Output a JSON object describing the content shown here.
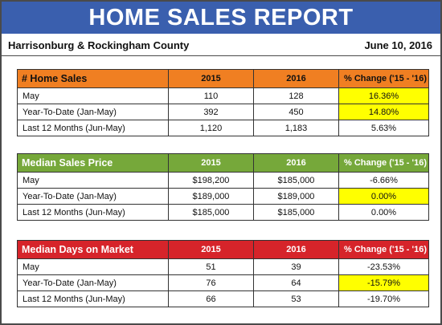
{
  "header": {
    "title": "HOME SALES REPORT",
    "location": "Harrisonburg & Rockingham County",
    "date": "June 10, 2016"
  },
  "sections": [
    {
      "title": "# Home Sales",
      "col_2015": "2015",
      "col_2016": "2016",
      "col_change": "% Change ('15 - '16)",
      "rows": [
        {
          "label": "May",
          "v2015": "110",
          "v2016": "128",
          "change": "16.36%",
          "highlight": true
        },
        {
          "label": "Year-To-Date (Jan-May)",
          "v2015": "392",
          "v2016": "450",
          "change": "14.80%",
          "highlight": true
        },
        {
          "label": "Last 12 Months (Jun-May)",
          "v2015": "1,120",
          "v2016": "1,183",
          "change": "5.63%",
          "highlight": false
        }
      ]
    },
    {
      "title": "Median Sales Price",
      "col_2015": "2015",
      "col_2016": "2016",
      "col_change": "% Change ('15 - '16)",
      "rows": [
        {
          "label": "May",
          "v2015": "$198,200",
          "v2016": "$185,000",
          "change": "-6.66%",
          "highlight": false
        },
        {
          "label": "Year-To-Date (Jan-May)",
          "v2015": "$189,000",
          "v2016": "$189,000",
          "change": "0.00%",
          "highlight": true
        },
        {
          "label": "Last 12 Months (Jun-May)",
          "v2015": "$185,000",
          "v2016": "$185,000",
          "change": "0.00%",
          "highlight": false
        }
      ]
    },
    {
      "title": "Median Days on Market",
      "col_2015": "2015",
      "col_2016": "2016",
      "col_change": "% Change ('15 - '16)",
      "rows": [
        {
          "label": "May",
          "v2015": "51",
          "v2016": "39",
          "change": "-23.53%",
          "highlight": false
        },
        {
          "label": "Year-To-Date (Jan-May)",
          "v2015": "76",
          "v2016": "64",
          "change": "-15.79%",
          "highlight": true
        },
        {
          "label": "Last 12 Months (Jun-May)",
          "v2015": "66",
          "v2016": "53",
          "change": "-19.70%",
          "highlight": false
        }
      ]
    }
  ],
  "colors": {
    "banner": "#3a5fae",
    "home_sales_header": "#f07f22",
    "median_price_header": "#76a83a",
    "days_on_market_header": "#d6242a",
    "highlight": "#ffff00"
  }
}
